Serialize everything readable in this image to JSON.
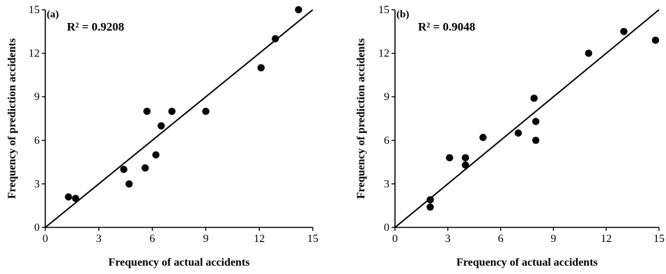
{
  "chart_data": [
    {
      "type": "scatter",
      "panel_label": "(a)",
      "annotation": "R² = 0.9208",
      "xlabel": "Frequency of actual accidents",
      "ylabel": "Frequency of prediction accidents",
      "xlim": [
        0,
        15
      ],
      "ylim": [
        0,
        15
      ],
      "xticks": [
        "0",
        "3",
        "6",
        "9",
        "12",
        "15"
      ],
      "yticks": [
        "0",
        "3",
        "6",
        "9",
        "12",
        "15"
      ],
      "points": [
        {
          "x": 1.3,
          "y": 2.1
        },
        {
          "x": 1.7,
          "y": 2.0
        },
        {
          "x": 4.4,
          "y": 4.0
        },
        {
          "x": 4.7,
          "y": 3.0
        },
        {
          "x": 5.6,
          "y": 4.1
        },
        {
          "x": 5.7,
          "y": 8.0
        },
        {
          "x": 6.2,
          "y": 5.0
        },
        {
          "x": 6.5,
          "y": 7.0
        },
        {
          "x": 7.1,
          "y": 8.0
        },
        {
          "x": 9.0,
          "y": 8.0
        },
        {
          "x": 12.1,
          "y": 11.0
        },
        {
          "x": 12.9,
          "y": 13.0
        },
        {
          "x": 14.2,
          "y": 15.0
        }
      ],
      "fit_line": [
        [
          0,
          0
        ],
        [
          15,
          15
        ]
      ]
    },
    {
      "type": "scatter",
      "panel_label": "(b)",
      "annotation": "R² = 0.9048",
      "xlabel": "Frequency of actual accidents",
      "ylabel": "Frequency of prediction accidents",
      "xlim": [
        0,
        15
      ],
      "ylim": [
        0,
        15
      ],
      "xticks": [
        "0",
        "3",
        "6",
        "9",
        "12",
        "15"
      ],
      "yticks": [
        "0",
        "3",
        "6",
        "9",
        "12",
        "15"
      ],
      "points": [
        {
          "x": 2.0,
          "y": 1.9
        },
        {
          "x": 2.0,
          "y": 1.4
        },
        {
          "x": 3.1,
          "y": 4.8
        },
        {
          "x": 4.0,
          "y": 4.8
        },
        {
          "x": 4.0,
          "y": 4.3
        },
        {
          "x": 5.0,
          "y": 6.2
        },
        {
          "x": 7.0,
          "y": 6.5
        },
        {
          "x": 7.9,
          "y": 8.9
        },
        {
          "x": 8.0,
          "y": 7.3
        },
        {
          "x": 8.0,
          "y": 6.0
        },
        {
          "x": 11.0,
          "y": 12.0
        },
        {
          "x": 13.0,
          "y": 13.5
        },
        {
          "x": 14.8,
          "y": 12.9
        }
      ],
      "fit_line": [
        [
          0,
          0
        ],
        [
          15,
          15
        ]
      ]
    }
  ]
}
